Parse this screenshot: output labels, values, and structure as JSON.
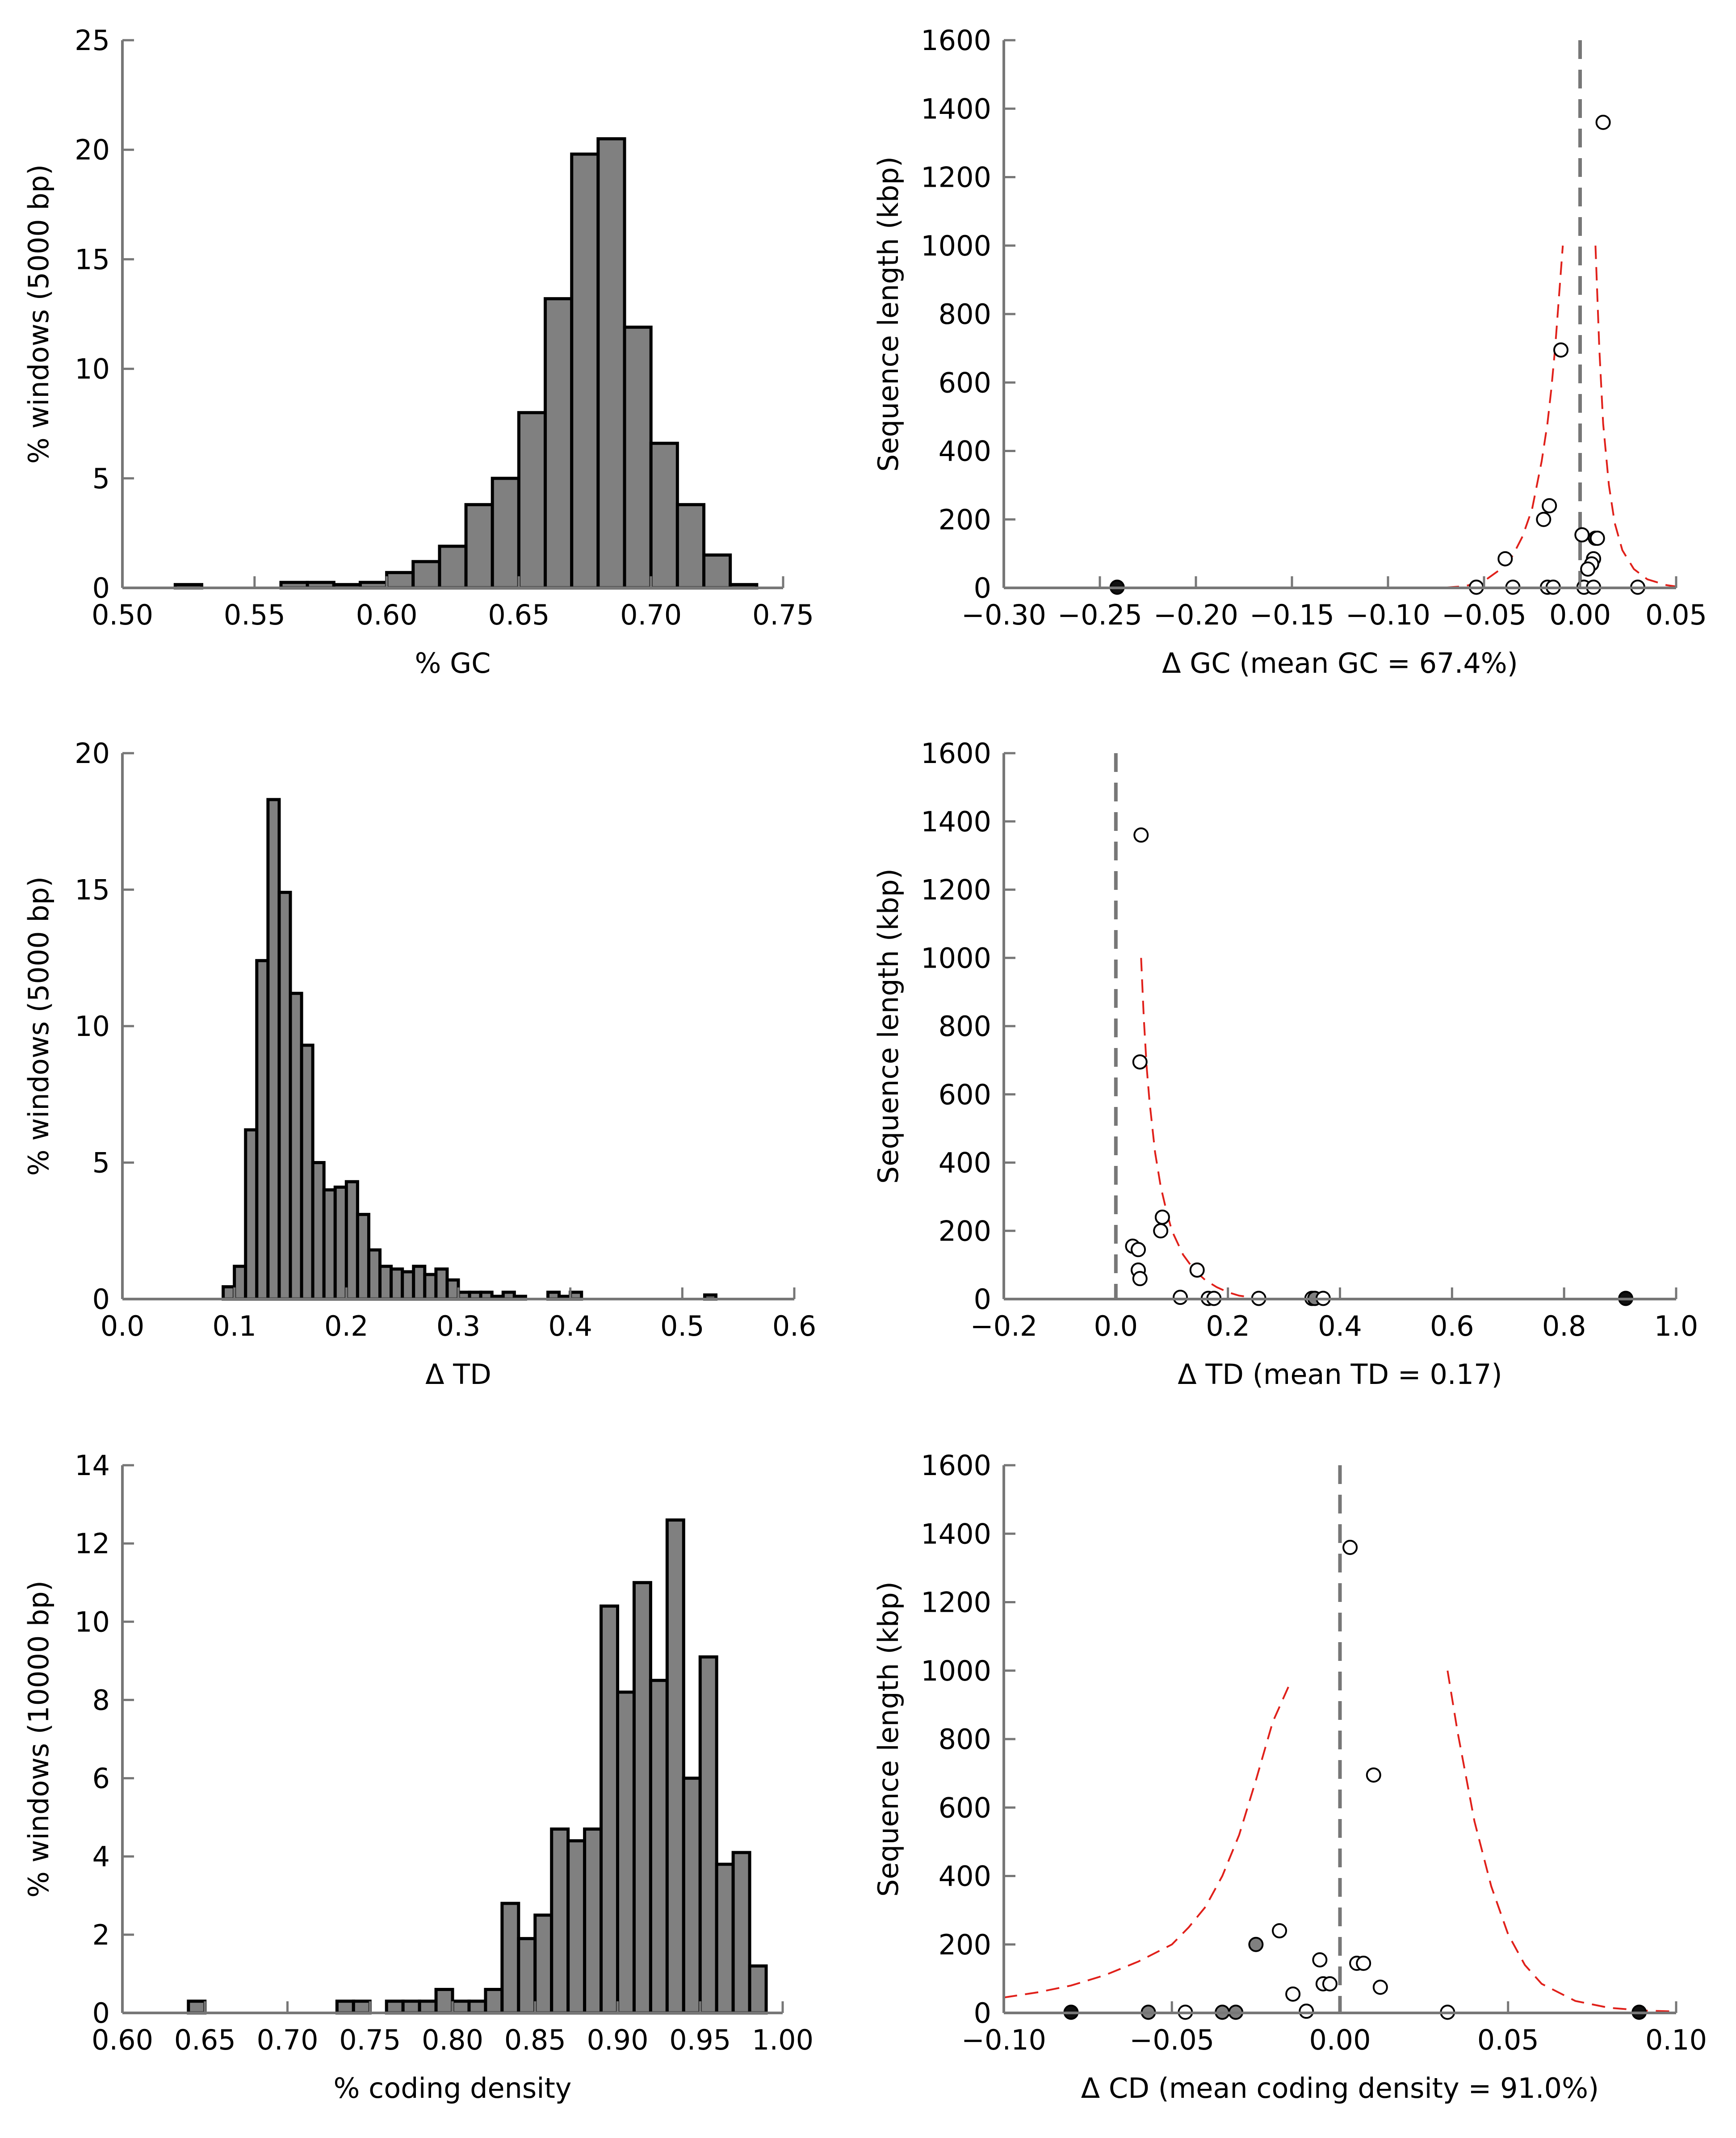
{
  "chart_data": [
    {
      "type": "bar",
      "xlabel": "% GC",
      "ylabel": "% windows (5000 bp)",
      "xlim": [
        0.5,
        0.75
      ],
      "ylim": [
        0,
        25
      ],
      "xticks": [
        "0.50",
        "0.55",
        "0.60",
        "0.65",
        "0.70",
        "0.75"
      ],
      "xtick_values": [
        0.5,
        0.55,
        0.6,
        0.65,
        0.7,
        0.75
      ],
      "yticks": [
        "0",
        "5",
        "10",
        "15",
        "20",
        "25"
      ],
      "ytick_values": [
        0,
        5,
        10,
        15,
        20,
        25
      ],
      "bin_width": 0.01,
      "bins": [
        {
          "x": 0.52,
          "value": 0.15
        },
        {
          "x": 0.56,
          "value": 0.25
        },
        {
          "x": 0.57,
          "value": 0.25
        },
        {
          "x": 0.58,
          "value": 0.15
        },
        {
          "x": 0.59,
          "value": 0.25
        },
        {
          "x": 0.6,
          "value": 0.7
        },
        {
          "x": 0.61,
          "value": 1.2
        },
        {
          "x": 0.62,
          "value": 1.9
        },
        {
          "x": 0.63,
          "value": 3.8
        },
        {
          "x": 0.64,
          "value": 5.0
        },
        {
          "x": 0.65,
          "value": 8.0
        },
        {
          "x": 0.66,
          "value": 13.2
        },
        {
          "x": 0.67,
          "value": 19.8
        },
        {
          "x": 0.68,
          "value": 20.5
        },
        {
          "x": 0.69,
          "value": 11.9
        },
        {
          "x": 0.7,
          "value": 6.6
        },
        {
          "x": 0.71,
          "value": 3.8
        },
        {
          "x": 0.72,
          "value": 1.5
        },
        {
          "x": 0.73,
          "value": 0.15
        }
      ]
    },
    {
      "type": "scatter",
      "xlabel": "Δ GC (mean GC = 67.4%)",
      "ylabel": "Sequence length (kbp)",
      "xlim": [
        -0.3,
        0.05
      ],
      "ylim": [
        0,
        1600
      ],
      "xticks": [
        "−0.30",
        "−0.25",
        "−0.20",
        "−0.15",
        "−0.10",
        "−0.05",
        "0.00",
        "0.05"
      ],
      "xtick_values": [
        -0.3,
        -0.25,
        -0.2,
        -0.15,
        -0.1,
        -0.05,
        0.0,
        0.05
      ],
      "yticks": [
        "0",
        "200",
        "400",
        "600",
        "800",
        "1000",
        "1200",
        "1400",
        "1600"
      ],
      "ytick_values": [
        0,
        200,
        400,
        600,
        800,
        1000,
        1200,
        1400,
        1600
      ],
      "reference_line_x": 0.0,
      "points": [
        {
          "x": 0.012,
          "y": 1360,
          "fill": "open"
        },
        {
          "x": -0.01,
          "y": 695,
          "fill": "open"
        },
        {
          "x": -0.016,
          "y": 240,
          "fill": "open"
        },
        {
          "x": -0.019,
          "y": 200,
          "fill": "open"
        },
        {
          "x": 0.001,
          "y": 155,
          "fill": "open"
        },
        {
          "x": 0.008,
          "y": 145,
          "fill": "open"
        },
        {
          "x": 0.009,
          "y": 145,
          "fill": "open"
        },
        {
          "x": -0.039,
          "y": 85,
          "fill": "open"
        },
        {
          "x": 0.007,
          "y": 85,
          "fill": "open"
        },
        {
          "x": 0.006,
          "y": 70,
          "fill": "open"
        },
        {
          "x": 0.004,
          "y": 55,
          "fill": "open"
        },
        {
          "x": -0.054,
          "y": 2,
          "fill": "open"
        },
        {
          "x": -0.035,
          "y": 2,
          "fill": "open"
        },
        {
          "x": -0.017,
          "y": 2,
          "fill": "open"
        },
        {
          "x": -0.014,
          "y": 2,
          "fill": "open"
        },
        {
          "x": 0.002,
          "y": 2,
          "fill": "open"
        },
        {
          "x": 0.007,
          "y": 2,
          "fill": "open"
        },
        {
          "x": 0.03,
          "y": 2,
          "fill": "open"
        },
        {
          "x": -0.241,
          "y": 2,
          "fill": "black"
        }
      ],
      "curves": [
        {
          "name": "",
          "x": [
            -0.07,
            -0.06,
            -0.05,
            -0.04,
            -0.035,
            -0.03,
            -0.025,
            -0.02,
            -0.017,
            -0.015,
            -0.013,
            -0.011,
            -0.009
          ],
          "y": [
            1,
            5,
            20,
            60,
            95,
            150,
            230,
            370,
            480,
            580,
            700,
            850,
            1000
          ]
        },
        {
          "name": "",
          "x": [
            0.008,
            0.009,
            0.01,
            0.012,
            0.015,
            0.018,
            0.022,
            0.028,
            0.035,
            0.045,
            0.05
          ],
          "y": [
            1000,
            850,
            700,
            480,
            300,
            190,
            110,
            55,
            25,
            8,
            4
          ]
        }
      ]
    },
    {
      "type": "bar",
      "xlabel": "Δ TD",
      "ylabel": "% windows (5000 bp)",
      "xlim": [
        0.0,
        0.6
      ],
      "ylim": [
        0,
        20
      ],
      "xticks": [
        "0.0",
        "0.1",
        "0.2",
        "0.3",
        "0.4",
        "0.5",
        "0.6"
      ],
      "xtick_values": [
        0.0,
        0.1,
        0.2,
        0.3,
        0.4,
        0.5,
        0.6
      ],
      "yticks": [
        "0",
        "5",
        "10",
        "15",
        "20"
      ],
      "ytick_values": [
        0,
        5,
        10,
        15,
        20
      ],
      "bin_width": 0.01,
      "bins": [
        {
          "x": 0.09,
          "value": 0.45
        },
        {
          "x": 0.1,
          "value": 1.2
        },
        {
          "x": 0.11,
          "value": 6.2
        },
        {
          "x": 0.12,
          "value": 12.4
        },
        {
          "x": 0.13,
          "value": 18.3
        },
        {
          "x": 0.14,
          "value": 14.9
        },
        {
          "x": 0.15,
          "value": 11.2
        },
        {
          "x": 0.16,
          "value": 9.3
        },
        {
          "x": 0.17,
          "value": 5.0
        },
        {
          "x": 0.18,
          "value": 4.0
        },
        {
          "x": 0.19,
          "value": 4.1
        },
        {
          "x": 0.2,
          "value": 4.3
        },
        {
          "x": 0.21,
          "value": 3.1
        },
        {
          "x": 0.22,
          "value": 1.8
        },
        {
          "x": 0.23,
          "value": 1.2
        },
        {
          "x": 0.24,
          "value": 1.1
        },
        {
          "x": 0.25,
          "value": 1.0
        },
        {
          "x": 0.26,
          "value": 1.2
        },
        {
          "x": 0.27,
          "value": 0.9
        },
        {
          "x": 0.28,
          "value": 1.1
        },
        {
          "x": 0.29,
          "value": 0.7
        },
        {
          "x": 0.3,
          "value": 0.25
        },
        {
          "x": 0.31,
          "value": 0.25
        },
        {
          "x": 0.32,
          "value": 0.25
        },
        {
          "x": 0.33,
          "value": 0.1
        },
        {
          "x": 0.34,
          "value": 0.25
        },
        {
          "x": 0.35,
          "value": 0.1
        },
        {
          "x": 0.38,
          "value": 0.25
        },
        {
          "x": 0.39,
          "value": 0.1
        },
        {
          "x": 0.4,
          "value": 0.25
        },
        {
          "x": 0.52,
          "value": 0.15
        }
      ]
    },
    {
      "type": "scatter",
      "xlabel": "Δ TD (mean TD = 0.17)",
      "ylabel": "Sequence length (kbp)",
      "xlim": [
        -0.2,
        1.0
      ],
      "ylim": [
        0,
        1600
      ],
      "xticks": [
        "−0.2",
        "0.0",
        "0.2",
        "0.4",
        "0.6",
        "0.8",
        "1.0"
      ],
      "xtick_values": [
        -0.2,
        0.0,
        0.2,
        0.4,
        0.6,
        0.8,
        1.0
      ],
      "yticks": [
        "0",
        "200",
        "400",
        "600",
        "800",
        "1000",
        "1200",
        "1400",
        "1600"
      ],
      "ytick_values": [
        0,
        200,
        400,
        600,
        800,
        1000,
        1200,
        1400,
        1600
      ],
      "reference_line_x": 0.0,
      "points": [
        {
          "x": 0.045,
          "y": 1360,
          "fill": "open"
        },
        {
          "x": 0.043,
          "y": 695,
          "fill": "open"
        },
        {
          "x": 0.083,
          "y": 240,
          "fill": "open"
        },
        {
          "x": 0.08,
          "y": 200,
          "fill": "open"
        },
        {
          "x": 0.03,
          "y": 155,
          "fill": "open"
        },
        {
          "x": 0.04,
          "y": 145,
          "fill": "open"
        },
        {
          "x": 0.145,
          "y": 85,
          "fill": "open"
        },
        {
          "x": 0.04,
          "y": 85,
          "fill": "open"
        },
        {
          "x": 0.043,
          "y": 60,
          "fill": "open"
        },
        {
          "x": 0.115,
          "y": 5,
          "fill": "open"
        },
        {
          "x": 0.165,
          "y": 2,
          "fill": "open"
        },
        {
          "x": 0.175,
          "y": 2,
          "fill": "open"
        },
        {
          "x": 0.255,
          "y": 2,
          "fill": "open"
        },
        {
          "x": 0.35,
          "y": 2,
          "fill": "open"
        },
        {
          "x": 0.355,
          "y": 2,
          "fill": "gray"
        },
        {
          "x": 0.37,
          "y": 2,
          "fill": "open"
        },
        {
          "x": 0.91,
          "y": 2,
          "fill": "black"
        }
      ],
      "curves": [
        {
          "name": "",
          "x": [
            0.045,
            0.05,
            0.055,
            0.06,
            0.07,
            0.08,
            0.09,
            0.1,
            0.12,
            0.14,
            0.16,
            0.18,
            0.2,
            0.22,
            0.25
          ],
          "y": [
            1000,
            820,
            680,
            580,
            430,
            330,
            260,
            200,
            130,
            85,
            55,
            35,
            20,
            10,
            3
          ]
        }
      ]
    },
    {
      "type": "bar",
      "xlabel": "% coding density",
      "ylabel": "% windows (10000 bp)",
      "xlim": [
        0.6,
        1.0
      ],
      "ylim": [
        0,
        14
      ],
      "xticks": [
        "0.60",
        "0.65",
        "0.70",
        "0.75",
        "0.80",
        "0.85",
        "0.90",
        "0.95",
        "1.00"
      ],
      "xtick_values": [
        0.6,
        0.65,
        0.7,
        0.75,
        0.8,
        0.85,
        0.9,
        0.95,
        1.0
      ],
      "yticks": [
        "0",
        "2",
        "4",
        "6",
        "8",
        "10",
        "12",
        "14"
      ],
      "ytick_values": [
        0,
        2,
        4,
        6,
        8,
        10,
        12,
        14
      ],
      "bin_width": 0.01,
      "bins": [
        {
          "x": 0.64,
          "value": 0.3
        },
        {
          "x": 0.73,
          "value": 0.3
        },
        {
          "x": 0.74,
          "value": 0.3
        },
        {
          "x": 0.76,
          "value": 0.3
        },
        {
          "x": 0.77,
          "value": 0.3
        },
        {
          "x": 0.78,
          "value": 0.3
        },
        {
          "x": 0.79,
          "value": 0.6
        },
        {
          "x": 0.8,
          "value": 0.3
        },
        {
          "x": 0.81,
          "value": 0.3
        },
        {
          "x": 0.82,
          "value": 0.6
        },
        {
          "x": 0.83,
          "value": 2.8
        },
        {
          "x": 0.84,
          "value": 1.9
        },
        {
          "x": 0.85,
          "value": 2.5
        },
        {
          "x": 0.86,
          "value": 4.7
        },
        {
          "x": 0.87,
          "value": 4.4
        },
        {
          "x": 0.88,
          "value": 4.7
        },
        {
          "x": 0.89,
          "value": 10.4
        },
        {
          "x": 0.9,
          "value": 8.2
        },
        {
          "x": 0.91,
          "value": 11.0
        },
        {
          "x": 0.92,
          "value": 8.5
        },
        {
          "x": 0.93,
          "value": 12.6
        },
        {
          "x": 0.94,
          "value": 6.0
        },
        {
          "x": 0.95,
          "value": 9.1
        },
        {
          "x": 0.96,
          "value": 3.8
        },
        {
          "x": 0.97,
          "value": 4.1
        },
        {
          "x": 0.98,
          "value": 1.2
        }
      ]
    },
    {
      "type": "scatter",
      "xlabel": "Δ CD (mean coding density = 91.0%)",
      "ylabel": "Sequence length (kbp)",
      "xlim": [
        -0.1,
        0.1
      ],
      "ylim": [
        0,
        1600
      ],
      "xticks": [
        "−0.10",
        "−0.05",
        "0.00",
        "0.05",
        "0.10"
      ],
      "xtick_values": [
        -0.1,
        -0.05,
        0.0,
        0.05,
        0.1
      ],
      "yticks": [
        "0",
        "200",
        "400",
        "600",
        "800",
        "1000",
        "1200",
        "1400",
        "1600"
      ],
      "ytick_values": [
        0,
        200,
        400,
        600,
        800,
        1000,
        1200,
        1400,
        1600
      ],
      "reference_line_x": 0.0,
      "points": [
        {
          "x": 0.003,
          "y": 1360,
          "fill": "open"
        },
        {
          "x": 0.01,
          "y": 695,
          "fill": "open"
        },
        {
          "x": -0.018,
          "y": 240,
          "fill": "open"
        },
        {
          "x": -0.025,
          "y": 200,
          "fill": "gray"
        },
        {
          "x": -0.006,
          "y": 155,
          "fill": "open"
        },
        {
          "x": 0.005,
          "y": 145,
          "fill": "open"
        },
        {
          "x": 0.007,
          "y": 145,
          "fill": "open"
        },
        {
          "x": -0.005,
          "y": 85,
          "fill": "open"
        },
        {
          "x": -0.003,
          "y": 85,
          "fill": "open"
        },
        {
          "x": 0.012,
          "y": 75,
          "fill": "open"
        },
        {
          "x": -0.014,
          "y": 55,
          "fill": "open"
        },
        {
          "x": -0.01,
          "y": 5,
          "fill": "open"
        },
        {
          "x": -0.046,
          "y": 2,
          "fill": "open"
        },
        {
          "x": -0.035,
          "y": 2,
          "fill": "gray"
        },
        {
          "x": -0.031,
          "y": 2,
          "fill": "gray"
        },
        {
          "x": 0.032,
          "y": 2,
          "fill": "open"
        },
        {
          "x": -0.057,
          "y": 2,
          "fill": "gray"
        },
        {
          "x": -0.08,
          "y": 2,
          "fill": "black"
        },
        {
          "x": 0.089,
          "y": 2,
          "fill": "black"
        }
      ],
      "curves": [
        {
          "name": "",
          "x": [
            -0.1,
            -0.09,
            -0.08,
            -0.07,
            -0.06,
            -0.05,
            -0.045,
            -0.04,
            -0.035,
            -0.03,
            -0.025,
            -0.02,
            -0.015
          ],
          "y": [
            45,
            60,
            80,
            110,
            150,
            200,
            250,
            310,
            400,
            520,
            680,
            850,
            960
          ]
        },
        {
          "name": "",
          "x": [
            0.032,
            0.035,
            0.04,
            0.045,
            0.05,
            0.055,
            0.06,
            0.07,
            0.08,
            0.09,
            0.1
          ],
          "y": [
            1000,
            820,
            560,
            370,
            230,
            140,
            85,
            35,
            15,
            7,
            4
          ]
        }
      ]
    }
  ]
}
